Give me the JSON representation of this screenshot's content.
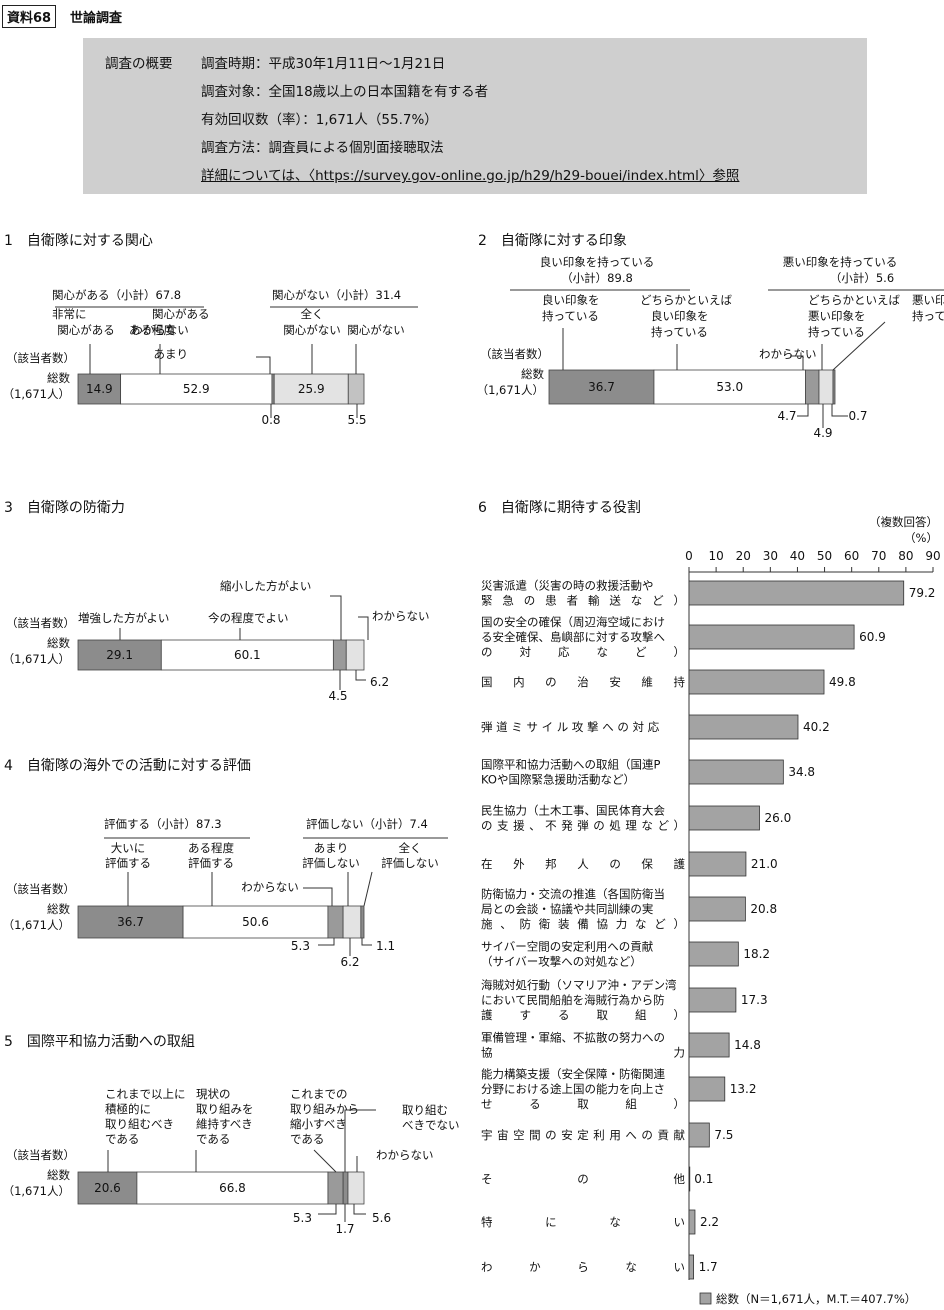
{
  "header": {
    "box_label": "資料68",
    "title": "世論調査"
  },
  "summary": {
    "label": "調査の概要",
    "lines": [
      "調査時期：平成30年1月11日〜1月21日",
      "調査対象：全国18歳以上の日本国籍を有する者",
      "有効回収数（率）：1,671人（55.7%）",
      "調査方法：調査員による個別面接聴取法",
      "詳細については、〈https://survey.gov-online.go.jp/h29/h29-bouei/index.html〉参照"
    ]
  },
  "common": {
    "subject_label": "（該当者数）",
    "total_label": "総数",
    "total_n": "（1,671人）"
  },
  "colors": {
    "dark": "#8c8c8c",
    "white": "#ffffff",
    "light": "#e3e3e3",
    "mid": "#c2c2c2",
    "small_dark": "#9a9a9a"
  },
  "chart_data": [
    {
      "type": "bar",
      "stacked": true,
      "orientation": "horizontal",
      "title": "1　自衛隊に対する関心",
      "groups": [
        {
          "label": "関心がある（小計）67.8"
        },
        {
          "label": "関心がない（小計）31.4"
        }
      ],
      "segments": [
        {
          "name": "非常に関心がある",
          "value": 14.9,
          "color": "dark",
          "label": "14.9",
          "inside": true
        },
        {
          "name": "ある程度関心がある",
          "value": 52.9,
          "color": "white",
          "label": "52.9",
          "inside": true
        },
        {
          "name": "わからない",
          "value": 0.8,
          "color": "dark",
          "label": "0.8",
          "inside": false
        },
        {
          "name": "あまり関心がない",
          "value": 25.9,
          "color": "light",
          "label": "25.9",
          "inside": true
        },
        {
          "name": "全く関心がない",
          "value": 5.5,
          "color": "mid",
          "label": "5.5",
          "inside": false
        }
      ],
      "annotations": [
        "非常に",
        "関心がある",
        "ある程度",
        "関心がある",
        "わからない",
        "あまり",
        "関心がない",
        "全く",
        "関心がない"
      ]
    },
    {
      "type": "bar",
      "stacked": true,
      "orientation": "horizontal",
      "title": "2　自衛隊に対する印象",
      "groups": [
        {
          "label": "良い印象を持っている",
          "sub": "（小計）89.8"
        },
        {
          "label": "悪い印象を持っている",
          "sub": "（小計）5.6"
        }
      ],
      "segments": [
        {
          "name": "良い印象を持っている",
          "value": 36.7,
          "color": "dark",
          "label": "36.7",
          "inside": true
        },
        {
          "name": "どちらかといえば良い印象を持っている",
          "value": 53.0,
          "color": "white",
          "label": "53.0",
          "inside": true
        },
        {
          "name": "わからない",
          "value": 4.7,
          "color": "small_dark",
          "label": "4.7",
          "inside": false
        },
        {
          "name": "どちらかといえば悪い印象を持っている",
          "value": 4.9,
          "color": "light",
          "label": "4.9",
          "inside": false
        },
        {
          "name": "悪い印象を持っている",
          "value": 0.7,
          "color": "dark",
          "label": "0.7",
          "inside": false
        }
      ],
      "annotations": [
        "良い印象を",
        "持っている",
        "どちらかといえば",
        "良い印象を",
        "持っている",
        "わからない",
        "どちらかといえば",
        "悪い印象を",
        "持っている",
        "悪い印象を",
        "持っている"
      ]
    },
    {
      "type": "bar",
      "stacked": true,
      "orientation": "horizontal",
      "title": "3　自衛隊の防衛力",
      "segments": [
        {
          "name": "増強した方がよい",
          "value": 29.1,
          "color": "dark",
          "label": "29.1",
          "inside": true
        },
        {
          "name": "今の程度でよい",
          "value": 60.1,
          "color": "white",
          "label": "60.1",
          "inside": true
        },
        {
          "name": "縮小した方がよい",
          "value": 4.5,
          "color": "small_dark",
          "label": "4.5",
          "inside": false
        },
        {
          "name": "わからない",
          "value": 6.2,
          "color": "light",
          "label": "6.2",
          "inside": false
        }
      ],
      "annotations": [
        "増強した方がよい",
        "今の程度でよい",
        "縮小した方がよい",
        "わからない"
      ]
    },
    {
      "type": "bar",
      "stacked": true,
      "orientation": "horizontal",
      "title": "4　自衛隊の海外での活動に対する評価",
      "groups": [
        {
          "label": "評価する（小計）87.3"
        },
        {
          "label": "評価しない（小計）7.4"
        }
      ],
      "segments": [
        {
          "name": "大いに評価する",
          "value": 36.7,
          "color": "dark",
          "label": "36.7",
          "inside": true
        },
        {
          "name": "ある程度評価する",
          "value": 50.6,
          "color": "white",
          "label": "50.6",
          "inside": true
        },
        {
          "name": "わからない",
          "value": 5.3,
          "color": "small_dark",
          "label": "5.3",
          "inside": false
        },
        {
          "name": "あまり評価しない",
          "value": 6.2,
          "color": "light",
          "label": "6.2",
          "inside": false
        },
        {
          "name": "全く評価しない",
          "value": 1.1,
          "color": "dark",
          "label": "1.1",
          "inside": false
        }
      ],
      "annotations": [
        "大いに",
        "評価する",
        "ある程度",
        "評価する",
        "わからない",
        "あまり",
        "評価しない",
        "全く",
        "評価しない"
      ]
    },
    {
      "type": "bar",
      "stacked": true,
      "orientation": "horizontal",
      "title": "5　国際平和協力活動への取組",
      "segments": [
        {
          "name": "これまで以上に積極的に取り組むべきである",
          "value": 20.6,
          "color": "dark",
          "label": "20.6",
          "inside": true
        },
        {
          "name": "現状の取り組みを維持すべきである",
          "value": 66.8,
          "color": "white",
          "label": "66.8",
          "inside": true
        },
        {
          "name": "これまでの取り組みから縮小すべきである",
          "value": 5.3,
          "color": "small_dark",
          "label": "5.3",
          "inside": false
        },
        {
          "name": "取り組むべきでない",
          "value": 1.7,
          "color": "dark",
          "label": "1.7",
          "inside": false
        },
        {
          "name": "わからない",
          "value": 5.6,
          "color": "light",
          "label": "5.6",
          "inside": false
        }
      ],
      "annotations": [
        "これまで以上に",
        "積極的に",
        "取り組むべき",
        "である",
        "現状の",
        "取り組みを",
        "維持すべき",
        "である",
        "これまでの",
        "取り組みから",
        "縮小すべき",
        "である",
        "取り組む",
        "べきでない",
        "わからない"
      ]
    },
    {
      "type": "bar",
      "orientation": "horizontal",
      "title": "6　自衛隊に期待する役割",
      "note": "（複数回答）",
      "unit": "（%）",
      "xlim": [
        0,
        90
      ],
      "ticks": [
        "0",
        "10",
        "20",
        "30",
        "40",
        "50",
        "60",
        "70",
        "80",
        "90"
      ],
      "legend": "総数（N＝1,671人，M.T.＝407.7%）",
      "categories": [
        [
          "災害派遣（災害の時の救援活動や",
          "緊急の患者輸送など）"
        ],
        [
          "国の安全の確保（周辺海空域におけ",
          "る安全確保、島嶼部に対する攻撃へ",
          "の対応など）"
        ],
        [
          "国　内　の　治　安　維　持"
        ],
        [
          "弾 道 ミ サ イ ル 攻 撃 へ の 対 応"
        ],
        [
          "国際平和協力活動への取組（国連P",
          "KOや国際緊急援助活動など）"
        ],
        [
          "民生協力（土木工事、国民体育大会",
          "の支援、不発弾の処理など）"
        ],
        [
          "在　外　邦　人　の　保　護"
        ],
        [
          "防衛協力・交流の推進（各国防衛当",
          "局との会談・協議や共同訓練の実",
          "施、防衛装備協力など）"
        ],
        [
          "サイバー空間の安定利用への貢献",
          "（サイバー攻撃への対処など）"
        ],
        [
          "海賊対処行動（ソマリア沖・アデン湾",
          "において民間船舶を海賊行為から防",
          "護する取組）"
        ],
        [
          "軍備管理・軍縮、不拡散の努力への",
          "協力"
        ],
        [
          "能力構築支援（安全保障・防衛関連",
          "分野における途上国の能力を向上さ",
          "せる取組）"
        ],
        [
          "宇宙空間の安定利用への貢献"
        ],
        [
          "そ　　　　　の　　　　　他"
        ],
        [
          "特　　　に　　　な　　　い"
        ],
        [
          "わ　　か　　ら　　な　　い"
        ]
      ],
      "values": [
        79.2,
        60.9,
        49.8,
        40.2,
        34.8,
        26.0,
        21.0,
        20.8,
        18.2,
        17.3,
        14.8,
        13.2,
        7.5,
        0.1,
        2.2,
        1.7
      ],
      "value_labels": [
        "79.2",
        "60.9",
        "49.8",
        "40.2",
        "34.8",
        "26.0",
        "21.0",
        "20.8",
        "18.2",
        "17.3",
        "14.8",
        "13.2",
        "7.5",
        "0.1",
        "2.2",
        "1.7"
      ],
      "bar_color": "#a3a3a3"
    }
  ]
}
